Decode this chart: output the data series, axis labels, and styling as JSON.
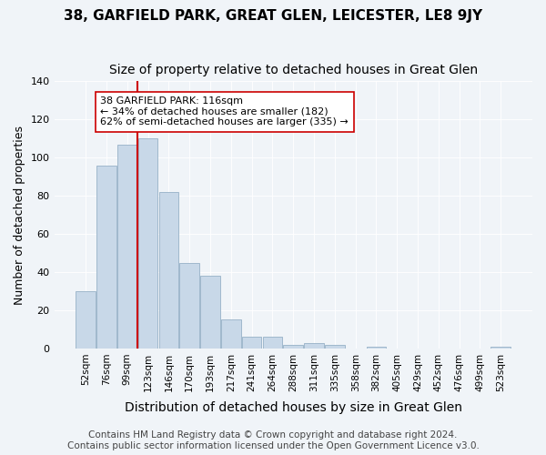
{
  "title": "38, GARFIELD PARK, GREAT GLEN, LEICESTER, LE8 9JY",
  "subtitle": "Size of property relative to detached houses in Great Glen",
  "xlabel": "Distribution of detached houses by size in Great Glen",
  "ylabel": "Number of detached properties",
  "bar_labels": [
    "52sqm",
    "76sqm",
    "99sqm",
    "123sqm",
    "146sqm",
    "170sqm",
    "193sqm",
    "217sqm",
    "241sqm",
    "264sqm",
    "288sqm",
    "311sqm",
    "335sqm",
    "358sqm",
    "382sqm",
    "405sqm",
    "429sqm",
    "452sqm",
    "476sqm",
    "499sqm",
    "523sqm"
  ],
  "bar_heights": [
    30,
    96,
    107,
    110,
    82,
    45,
    38,
    15,
    6,
    6,
    2,
    3,
    2,
    0,
    1,
    0,
    0,
    0,
    0,
    0,
    1
  ],
  "bar_color": "#c8d8e8",
  "bar_edge_color": "#a0b8cc",
  "vline_x": 2.5,
  "vline_color": "#cc0000",
  "annotation_title": "38 GARFIELD PARK: 116sqm",
  "annotation_line1": "← 34% of detached houses are smaller (182)",
  "annotation_line2": "62% of semi-detached houses are larger (335) →",
  "annotation_box_color": "#ffffff",
  "annotation_box_edge": "#cc0000",
  "ylim": [
    0,
    140
  ],
  "footer_line1": "Contains HM Land Registry data © Crown copyright and database right 2024.",
  "footer_line2": "Contains public sector information licensed under the Open Government Licence v3.0.",
  "background_color": "#f0f4f8",
  "title_fontsize": 11,
  "subtitle_fontsize": 10,
  "xlabel_fontsize": 10,
  "ylabel_fontsize": 9,
  "footer_fontsize": 7.5
}
